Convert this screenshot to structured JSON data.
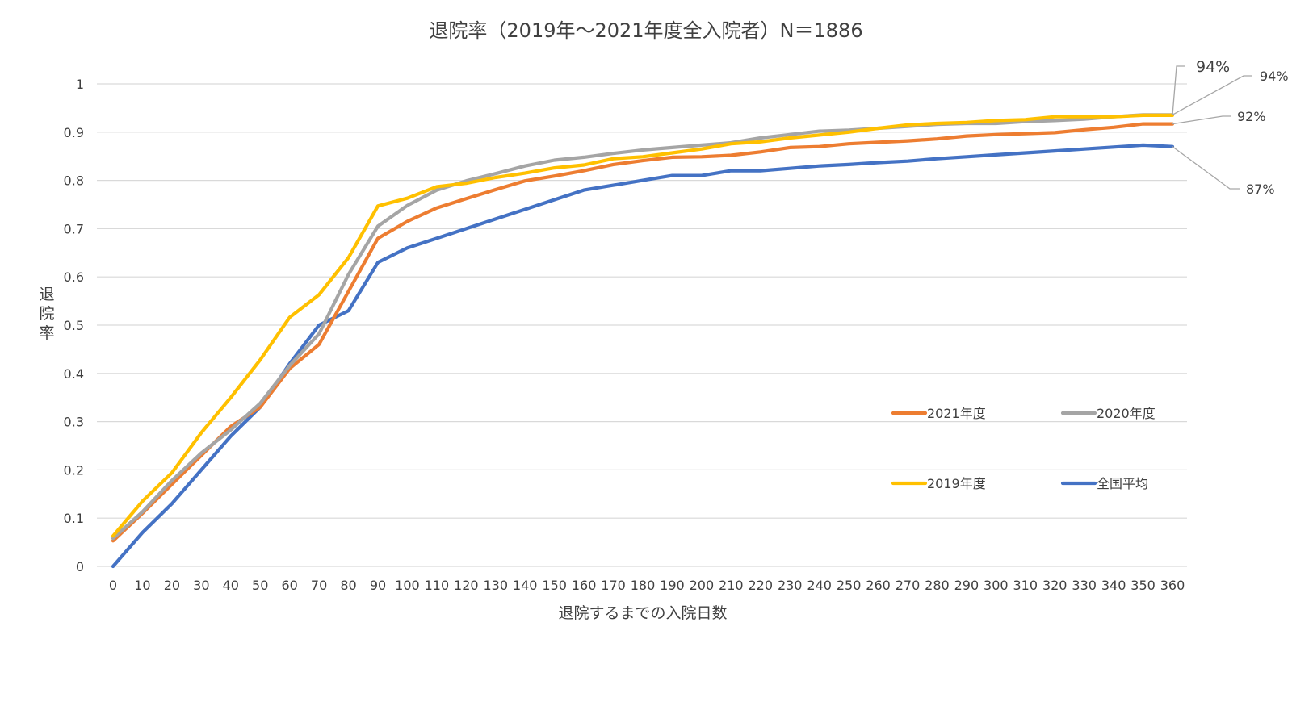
{
  "chart_data": {
    "type": "line",
    "title": "退院率（2019年～2021年度全入院者）N＝1886",
    "xlabel": "退院するまでの入院日数",
    "ylabel": "退院率",
    "x": [
      0,
      10,
      20,
      30,
      40,
      50,
      60,
      70,
      80,
      90,
      100,
      110,
      120,
      130,
      140,
      150,
      160,
      170,
      180,
      190,
      200,
      210,
      220,
      230,
      240,
      250,
      260,
      270,
      280,
      290,
      300,
      310,
      320,
      330,
      340,
      350,
      360
    ],
    "xlim": [
      0,
      360
    ],
    "ylim": [
      0,
      1
    ],
    "yticks": [
      "0",
      "0.1",
      "0.2",
      "0.3",
      "0.4",
      "0.5",
      "0.6",
      "0.7",
      "0.8",
      "0.9",
      "1"
    ],
    "xticks": [
      "0",
      "10",
      "20",
      "30",
      "40",
      "50",
      "60",
      "70",
      "80",
      "90",
      "100",
      "110",
      "120",
      "130",
      "140",
      "150",
      "160",
      "170",
      "180",
      "190",
      "200",
      "210",
      "220",
      "230",
      "240",
      "250",
      "260",
      "270",
      "280",
      "290",
      "300",
      "310",
      "320",
      "330",
      "340",
      "350",
      "360"
    ],
    "grid": "horizontal",
    "legend_position": "lower-right",
    "series": [
      {
        "name": "2021年度",
        "color": "#ED7D31",
        "values": [
          0.053,
          0.11,
          0.17,
          0.23,
          0.29,
          0.33,
          0.41,
          0.46,
          0.57,
          0.68,
          0.715,
          0.743,
          0.762,
          0.781,
          0.799,
          0.809,
          0.82,
          0.833,
          0.841,
          0.848,
          0.849,
          0.852,
          0.859,
          0.868,
          0.87,
          0.876,
          0.879,
          0.882,
          0.886,
          0.892,
          0.895,
          0.897,
          0.899,
          0.905,
          0.91,
          0.917,
          0.917
        ]
      },
      {
        "name": "2020年度",
        "color": "#A5A5A5",
        "values": [
          0.058,
          0.113,
          0.178,
          0.235,
          0.283,
          0.338,
          0.416,
          0.482,
          0.605,
          0.705,
          0.748,
          0.78,
          0.799,
          0.814,
          0.83,
          0.842,
          0.848,
          0.856,
          0.863,
          0.868,
          0.873,
          0.878,
          0.888,
          0.895,
          0.902,
          0.904,
          0.908,
          0.912,
          0.916,
          0.918,
          0.918,
          0.922,
          0.924,
          0.927,
          0.932,
          0.936,
          0.936
        ]
      },
      {
        "name": "2019年度",
        "color": "#FFC000",
        "values": [
          0.063,
          0.135,
          0.194,
          0.277,
          0.35,
          0.428,
          0.516,
          0.563,
          0.64,
          0.747,
          0.763,
          0.787,
          0.794,
          0.806,
          0.815,
          0.826,
          0.832,
          0.845,
          0.849,
          0.857,
          0.865,
          0.876,
          0.88,
          0.888,
          0.894,
          0.9,
          0.908,
          0.915,
          0.918,
          0.92,
          0.924,
          0.926,
          0.932,
          0.932,
          0.932,
          0.935,
          0.935
        ]
      },
      {
        "name": "全国平均",
        "color": "#4472C4",
        "values": [
          0.0,
          0.07,
          0.13,
          0.2,
          0.27,
          0.33,
          0.42,
          0.5,
          0.53,
          0.63,
          0.66,
          0.68,
          0.7,
          0.72,
          0.74,
          0.76,
          0.78,
          0.79,
          0.8,
          0.81,
          0.81,
          0.82,
          0.82,
          0.825,
          0.83,
          0.833,
          0.837,
          0.84,
          0.845,
          0.849,
          0.853,
          0.857,
          0.861,
          0.865,
          0.869,
          0.873,
          0.87
        ]
      }
    ],
    "annotations": [
      {
        "text": "94%",
        "series": "2019年度"
      },
      {
        "text": "94%",
        "series": "2020年度"
      },
      {
        "text": "92%",
        "series": "2021年度"
      },
      {
        "text": "87%",
        "series": "全国平均"
      }
    ]
  }
}
